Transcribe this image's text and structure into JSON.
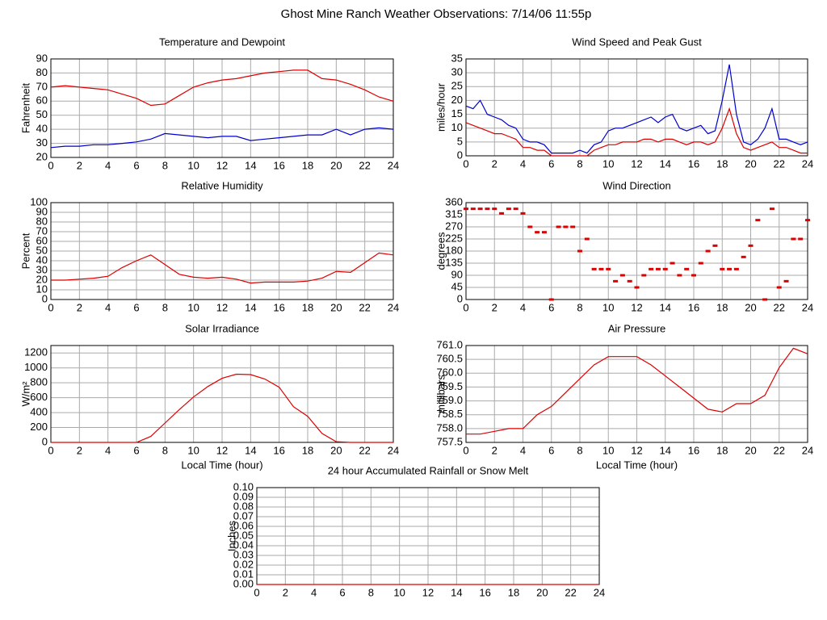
{
  "title": "Ghost Mine Ranch Weather Observations: 7/14/06 11:55p",
  "chart_data": [
    {
      "type": "line",
      "title": "Temperature and Dewpoint",
      "ylabel": "Fahrenheit",
      "x": [
        0,
        1,
        2,
        3,
        4,
        5,
        6,
        7,
        8,
        9,
        10,
        11,
        12,
        13,
        14,
        15,
        16,
        17,
        18,
        19,
        20,
        21,
        22,
        23,
        24
      ],
      "series": [
        {
          "color": "#dd0000",
          "values": [
            70,
            71,
            70,
            69,
            68,
            65,
            62,
            57,
            58,
            64,
            70,
            73,
            75,
            76,
            78,
            80,
            81,
            82,
            82,
            76,
            75,
            72,
            68,
            63,
            60
          ]
        },
        {
          "color": "#0000cc",
          "values": [
            27,
            28,
            28,
            29,
            29,
            30,
            31,
            33,
            37,
            36,
            35,
            34,
            35,
            35,
            32,
            33,
            34,
            35,
            36,
            36,
            40,
            36,
            40,
            41,
            40
          ]
        }
      ],
      "xlim": [
        0,
        24
      ],
      "xticks": [
        0,
        2,
        4,
        6,
        8,
        10,
        12,
        14,
        16,
        18,
        20,
        22,
        24
      ],
      "ylim": [
        20,
        90
      ],
      "yticks": [
        20,
        30,
        40,
        50,
        60,
        70,
        80,
        90
      ],
      "grid": true
    },
    {
      "type": "line",
      "title": "Wind Speed and Peak Gust",
      "ylabel": "miles/hour",
      "x": [
        0,
        0.5,
        1,
        1.5,
        2,
        2.5,
        3,
        3.5,
        4,
        4.5,
        5,
        5.5,
        6,
        6.5,
        7,
        7.5,
        8,
        8.5,
        9,
        9.5,
        10,
        10.5,
        11,
        11.5,
        12,
        12.5,
        13,
        13.5,
        14,
        14.5,
        15,
        15.5,
        16,
        16.5,
        17,
        17.5,
        18,
        18.5,
        19,
        19.5,
        20,
        20.5,
        21,
        21.5,
        22,
        22.5,
        23,
        23.5,
        24
      ],
      "series": [
        {
          "color": "#0000cc",
          "values": [
            18,
            17,
            20,
            15,
            14,
            13,
            11,
            10,
            6,
            5,
            5,
            4,
            1,
            1,
            1,
            1,
            2,
            1,
            4,
            5,
            9,
            10,
            10,
            11,
            12,
            13,
            14,
            12,
            14,
            15,
            10,
            9,
            10,
            11,
            8,
            9,
            20,
            33,
            15,
            5,
            4,
            6,
            10,
            17,
            6,
            6,
            5,
            4,
            5
          ]
        },
        {
          "color": "#dd0000",
          "values": [
            12,
            11,
            10,
            9,
            8,
            8,
            7,
            6,
            3,
            3,
            2,
            2,
            0,
            0,
            0,
            0,
            0,
            0,
            2,
            3,
            4,
            4,
            5,
            5,
            5,
            6,
            6,
            5,
            6,
            6,
            5,
            4,
            5,
            5,
            4,
            5,
            10,
            17,
            8,
            3,
            2,
            3,
            4,
            5,
            3,
            3,
            2,
            1,
            1
          ]
        }
      ],
      "xlim": [
        0,
        24
      ],
      "xticks": [
        0,
        2,
        4,
        6,
        8,
        10,
        12,
        14,
        16,
        18,
        20,
        22,
        24
      ],
      "ylim": [
        0,
        35
      ],
      "yticks": [
        0,
        5,
        10,
        15,
        20,
        25,
        30,
        35
      ],
      "grid": true
    },
    {
      "type": "line",
      "title": "Relative Humidity",
      "ylabel": "Percent",
      "x": [
        0,
        1,
        2,
        3,
        4,
        5,
        6,
        7,
        8,
        9,
        10,
        11,
        12,
        13,
        14,
        15,
        16,
        17,
        18,
        19,
        20,
        21,
        22,
        23,
        24
      ],
      "series": [
        {
          "color": "#dd0000",
          "values": [
            20,
            20,
            21,
            22,
            24,
            33,
            40,
            46,
            36,
            26,
            23,
            22,
            23,
            21,
            17,
            18,
            18,
            18,
            19,
            22,
            29,
            28,
            38,
            48,
            46
          ]
        }
      ],
      "xlim": [
        0,
        24
      ],
      "xticks": [
        0,
        2,
        4,
        6,
        8,
        10,
        12,
        14,
        16,
        18,
        20,
        22,
        24
      ],
      "ylim": [
        0,
        100
      ],
      "yticks": [
        0,
        10,
        20,
        30,
        40,
        50,
        60,
        70,
        80,
        90,
        100
      ],
      "grid": true
    },
    {
      "type": "scatter",
      "title": "Wind Direction",
      "ylabel": "degrees",
      "x": [
        0,
        0.5,
        1,
        1.5,
        2,
        2.5,
        3,
        3.5,
        4,
        4.5,
        5,
        5.5,
        6,
        6.5,
        7,
        7.5,
        8,
        8.5,
        9,
        9.5,
        10,
        10.5,
        11,
        11.5,
        12,
        12.5,
        13,
        13.5,
        14,
        14.5,
        15,
        15.5,
        16,
        16.5,
        17,
        17.5,
        18,
        18.5,
        19,
        19.5,
        20,
        20.5,
        21,
        21.5,
        22,
        22.5,
        23,
        23.5,
        24
      ],
      "series": [
        {
          "color": "#dd0000",
          "values": [
            337,
            337,
            337,
            337,
            337,
            320,
            337,
            337,
            320,
            270,
            250,
            250,
            0,
            270,
            270,
            270,
            180,
            225,
            113,
            113,
            113,
            68,
            90,
            68,
            45,
            90,
            113,
            113,
            113,
            135,
            90,
            113,
            90,
            135,
            180,
            200,
            113,
            113,
            113,
            158,
            200,
            295,
            0,
            337,
            45,
            68,
            225,
            225,
            295
          ]
        }
      ],
      "xlim": [
        0,
        24
      ],
      "xticks": [
        0,
        2,
        4,
        6,
        8,
        10,
        12,
        14,
        16,
        18,
        20,
        22,
        24
      ],
      "ylim": [
        0,
        360
      ],
      "yticks": [
        0,
        45,
        90,
        135,
        180,
        225,
        270,
        315,
        360
      ],
      "grid": true
    },
    {
      "type": "line",
      "title": "Solar Irradiance",
      "ylabel": "W/m²",
      "xlabel": "Local Time (hour)",
      "x": [
        0,
        1,
        2,
        3,
        4,
        5,
        6,
        7,
        8,
        9,
        10,
        11,
        12,
        13,
        14,
        15,
        16,
        17,
        18,
        19,
        20,
        21,
        22,
        23,
        24
      ],
      "series": [
        {
          "color": "#dd0000",
          "values": [
            0,
            0,
            0,
            0,
            0,
            0,
            0,
            80,
            260,
            440,
            610,
            750,
            860,
            915,
            910,
            850,
            740,
            480,
            350,
            120,
            10,
            0,
            0,
            0,
            0
          ]
        }
      ],
      "xlim": [
        0,
        24
      ],
      "xticks": [
        0,
        2,
        4,
        6,
        8,
        10,
        12,
        14,
        16,
        18,
        20,
        22,
        24
      ],
      "ylim": [
        0,
        1300
      ],
      "yticks": [
        0,
        200,
        400,
        600,
        800,
        1000,
        1200
      ],
      "grid": true
    },
    {
      "type": "line",
      "title": "Air Pressure",
      "ylabel": "millibars",
      "xlabel": "Local Time (hour)",
      "x": [
        0,
        1,
        2,
        3,
        4,
        5,
        6,
        7,
        8,
        9,
        10,
        11,
        12,
        13,
        14,
        15,
        16,
        17,
        18,
        19,
        20,
        21,
        22,
        23,
        24
      ],
      "series": [
        {
          "color": "#dd0000",
          "values": [
            757.8,
            757.8,
            757.9,
            758.0,
            758.0,
            758.5,
            758.8,
            759.3,
            759.8,
            760.3,
            760.6,
            760.6,
            760.6,
            760.3,
            759.9,
            759.5,
            759.1,
            758.7,
            758.6,
            758.9,
            758.9,
            759.2,
            760.2,
            760.9,
            760.7
          ]
        }
      ],
      "xlim": [
        0,
        24
      ],
      "xticks": [
        0,
        2,
        4,
        6,
        8,
        10,
        12,
        14,
        16,
        18,
        20,
        22,
        24
      ],
      "ylim": [
        757.5,
        761
      ],
      "yticks": [
        757.5,
        {
          "value": 758,
          "label": "758.0"
        },
        758.5,
        {
          "value": 759,
          "label": "759.0"
        },
        759.5,
        {
          "value": 760,
          "label": "760.0"
        },
        760.5,
        {
          "value": 761,
          "label": "761.0"
        }
      ],
      "grid": true
    },
    {
      "type": "line",
      "title": "24 hour Accumulated Rainfall or Snow Melt",
      "ylabel": "Inches",
      "x": [
        0,
        24
      ],
      "series": [
        {
          "color": "#dd0000",
          "values": [
            0,
            0
          ]
        }
      ],
      "xlim": [
        0,
        24
      ],
      "xticks": [
        0,
        2,
        4,
        6,
        8,
        10,
        12,
        14,
        16,
        18,
        20,
        22,
        24
      ],
      "ylim": [
        0,
        0.1
      ],
      "yticks": [
        {
          "value": 0,
          "label": "0.00"
        },
        {
          "value": 0.01,
          "label": "0.01"
        },
        {
          "value": 0.02,
          "label": "0.02"
        },
        {
          "value": 0.03,
          "label": "0.03"
        },
        {
          "value": 0.04,
          "label": "0.04"
        },
        {
          "value": 0.05,
          "label": "0.05"
        },
        {
          "value": 0.06,
          "label": "0.06"
        },
        {
          "value": 0.07,
          "label": "0.07"
        },
        {
          "value": 0.08,
          "label": "0.08"
        },
        {
          "value": 0.09,
          "label": "0.09"
        },
        {
          "value": 0.1,
          "label": "0.10"
        }
      ],
      "grid": true
    }
  ]
}
